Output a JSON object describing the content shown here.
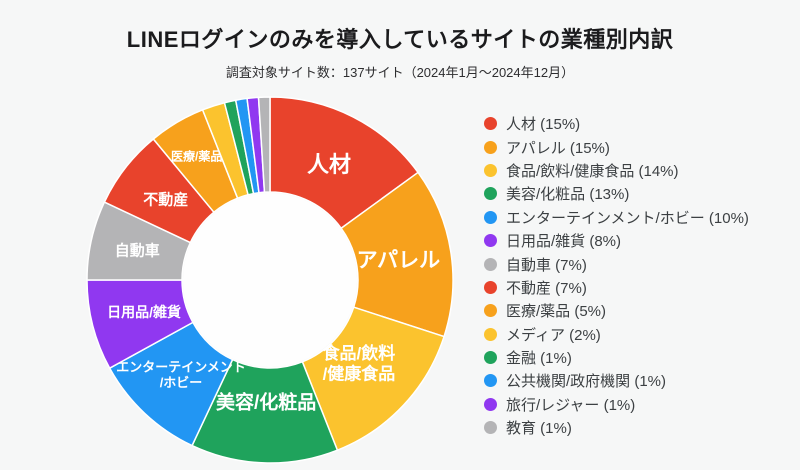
{
  "header": {
    "title": "LINEログインのみを導入しているサイトの業種別内訳",
    "subtitle": "調査対象サイト数：137サイト（2024年1月〜2024年12月）"
  },
  "theme": {
    "background": "#f6f7f7",
    "donut_hole": "#fefefe",
    "slice_gap_stroke": "#ffffff",
    "title_color": "#1b1b1d",
    "subtitle_color": "#2e2e30",
    "legend_text_color": "#3c4043",
    "slice_label_color": "#ffffff"
  },
  "chart_data": {
    "type": "pie",
    "variant": "donut",
    "title": "LINEログインのみを導入しているサイトの業種別内訳",
    "subtitle": "調査対象サイト数：137サイト（2024年1月〜2024年12月）",
    "unit": "%",
    "total_percent": 100,
    "start_angle_deg": 0,
    "direction": "clockwise",
    "legend_position": "right",
    "slices": [
      {
        "label": "人材",
        "value": 15,
        "color": "#e8432c",
        "legend_label": "人材 (15%)",
        "slice_label": {
          "lines": [
            "人材"
          ],
          "size": 22,
          "radius": 130
        }
      },
      {
        "label": "アパレル",
        "value": 15,
        "color": "#f7a11c",
        "legend_label": "アパレル (15%)",
        "slice_label": {
          "lines": [
            "アパレル"
          ],
          "size": 21,
          "radius": 130
        }
      },
      {
        "label": "食品/飲料/健康食品",
        "value": 14,
        "color": "#fbc32e",
        "legend_label": "食品/飲料/健康食品 (14%)",
        "slice_label": {
          "lines": [
            "食品/飲料",
            "/健康食品"
          ],
          "size": 17,
          "radius": 122
        }
      },
      {
        "label": "美容/化粧品",
        "value": 13,
        "color": "#1fa35c",
        "legend_label": "美容/化粧品 (13%)",
        "slice_label": {
          "lines": [
            "美容/化粧品"
          ],
          "size": 19,
          "radius": 122
        }
      },
      {
        "label": "エンターテインメント/ホビー",
        "value": 10,
        "color": "#2296f3",
        "legend_label": "エンターテインメント/ホビー (10%)",
        "slice_label": {
          "lines": [
            "エンターテインメント",
            "/ホビー"
          ],
          "size": 13,
          "radius": 130
        }
      },
      {
        "label": "日用品/雑貨",
        "value": 8,
        "color": "#9038f0",
        "legend_label": "日用品/雑貨 (8%)",
        "slice_label": {
          "lines": [
            "日用品/雑貨"
          ],
          "size": 14,
          "radius": 130
        }
      },
      {
        "label": "自動車",
        "value": 7,
        "color": "#b4b4b6",
        "legend_label": "自動車 (7%)",
        "slice_label": {
          "lines": [
            "自動車"
          ],
          "size": 15,
          "radius": 136
        }
      },
      {
        "label": "不動産",
        "value": 7,
        "color": "#e8432c",
        "legend_label": "不動産 (7%)",
        "slice_label": {
          "lines": [
            "不動産"
          ],
          "size": 15,
          "radius": 132
        }
      },
      {
        "label": "医療/薬品",
        "value": 5,
        "color": "#f7a11c",
        "legend_label": "医療/薬品 (5%)",
        "slice_label": {
          "lines": [
            "医療/薬品"
          ],
          "size": 12,
          "radius": 144
        }
      },
      {
        "label": "メディア",
        "value": 2,
        "color": "#fbc32e",
        "legend_label": "メディア (2%)",
        "slice_label": null
      },
      {
        "label": "金融",
        "value": 1,
        "color": "#1fa35c",
        "legend_label": "金融 (1%)",
        "slice_label": null
      },
      {
        "label": "公共機関/政府機関",
        "value": 1,
        "color": "#2296f3",
        "legend_label": "公共機関/政府機関 (1%)",
        "slice_label": null
      },
      {
        "label": "旅行/レジャー",
        "value": 1,
        "color": "#9038f0",
        "legend_label": "旅行/レジャー (1%)",
        "slice_label": null
      },
      {
        "label": "教育",
        "value": 1,
        "color": "#b4b4b6",
        "legend_label": "教育 (1%)",
        "slice_label": null
      }
    ]
  }
}
